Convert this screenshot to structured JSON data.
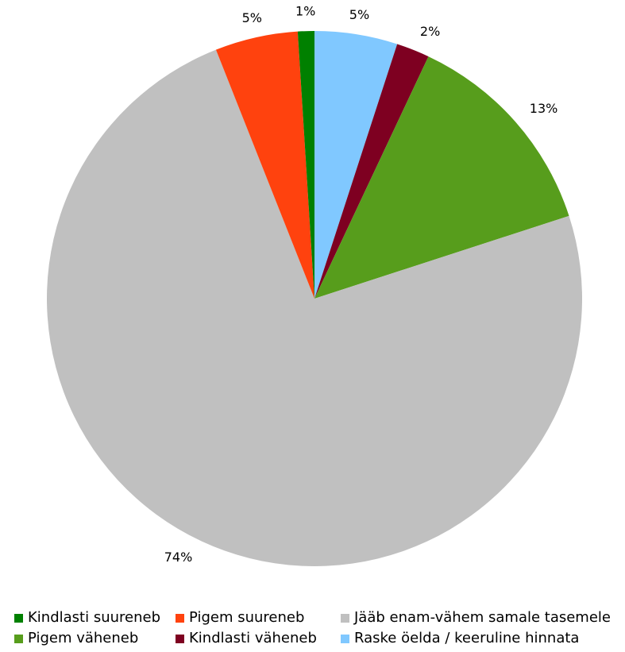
{
  "chart_data": {
    "type": "pie",
    "title": "",
    "start": "top",
    "direction": "clockwise",
    "slices": [
      {
        "label": "Raske öelda / keeruline hinnata",
        "value": 5,
        "display": "5%",
        "color": "#80c8ff"
      },
      {
        "label": "Kindlasti väheneb",
        "value": 2,
        "display": "2%",
        "color": "#7e0021"
      },
      {
        "label": "Pigem väheneb",
        "value": 13,
        "display": "13%",
        "color": "#579d1c"
      },
      {
        "label": "Jääb enam-vähem samale tasemele",
        "value": 74,
        "display": "74%",
        "color": "#c0c0c0"
      },
      {
        "label": "Pigem suureneb",
        "value": 5,
        "display": "5%",
        "color": "#ff420e"
      },
      {
        "label": "Kindlasti suureneb",
        "value": 1,
        "display": "1%",
        "color": "#008000"
      }
    ],
    "legend": {
      "placement": "bottom",
      "rows": [
        [
          {
            "label": "Kindlasti suureneb",
            "color": "#008000"
          },
          {
            "label": "Pigem suureneb",
            "color": "#ff420e"
          },
          {
            "label": "Jääb enam-vähem samale tasemele",
            "color": "#c0c0c0"
          }
        ],
        [
          {
            "label": "Pigem väheneb",
            "color": "#579d1c"
          },
          {
            "label": "Kindlasti väheneb",
            "color": "#7e0021"
          },
          {
            "label": "Raske öelda / keeruline hinnata",
            "color": "#80c8ff"
          }
        ]
      ]
    }
  }
}
